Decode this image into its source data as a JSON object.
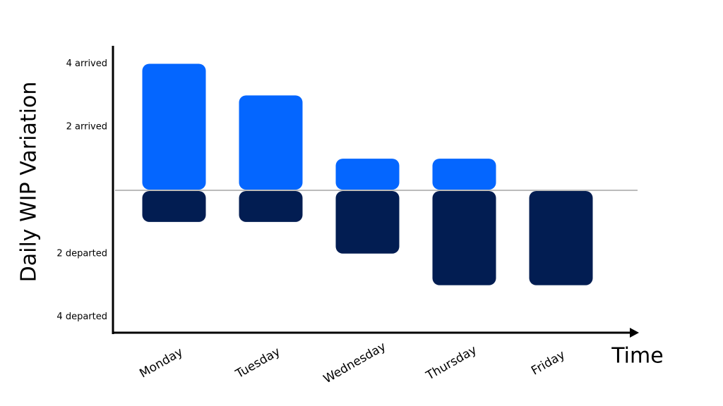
{
  "chart_data": {
    "type": "bar",
    "y_label": "Daily WIP Variation",
    "x_label": "Time",
    "categories": [
      "Monday",
      "Tuesday",
      "Wednesday",
      "Thursday",
      "Friday"
    ],
    "series": [
      {
        "color": "#0466ff",
        "values": [
          4,
          3,
          1,
          1,
          0
        ]
      },
      {
        "color": "#021d52",
        "values": [
          -1,
          -1,
          -2,
          -3,
          -3
        ]
      }
    ],
    "ylim": [
      -4.5,
      4.5
    ],
    "yticks": [
      {
        "value": 4,
        "label": "4 arrived"
      },
      {
        "value": 2,
        "label": "2 arrived"
      },
      {
        "value": -2,
        "label": "2 departed"
      },
      {
        "value": -4,
        "label": "4 departed"
      }
    ],
    "grid": false
  }
}
